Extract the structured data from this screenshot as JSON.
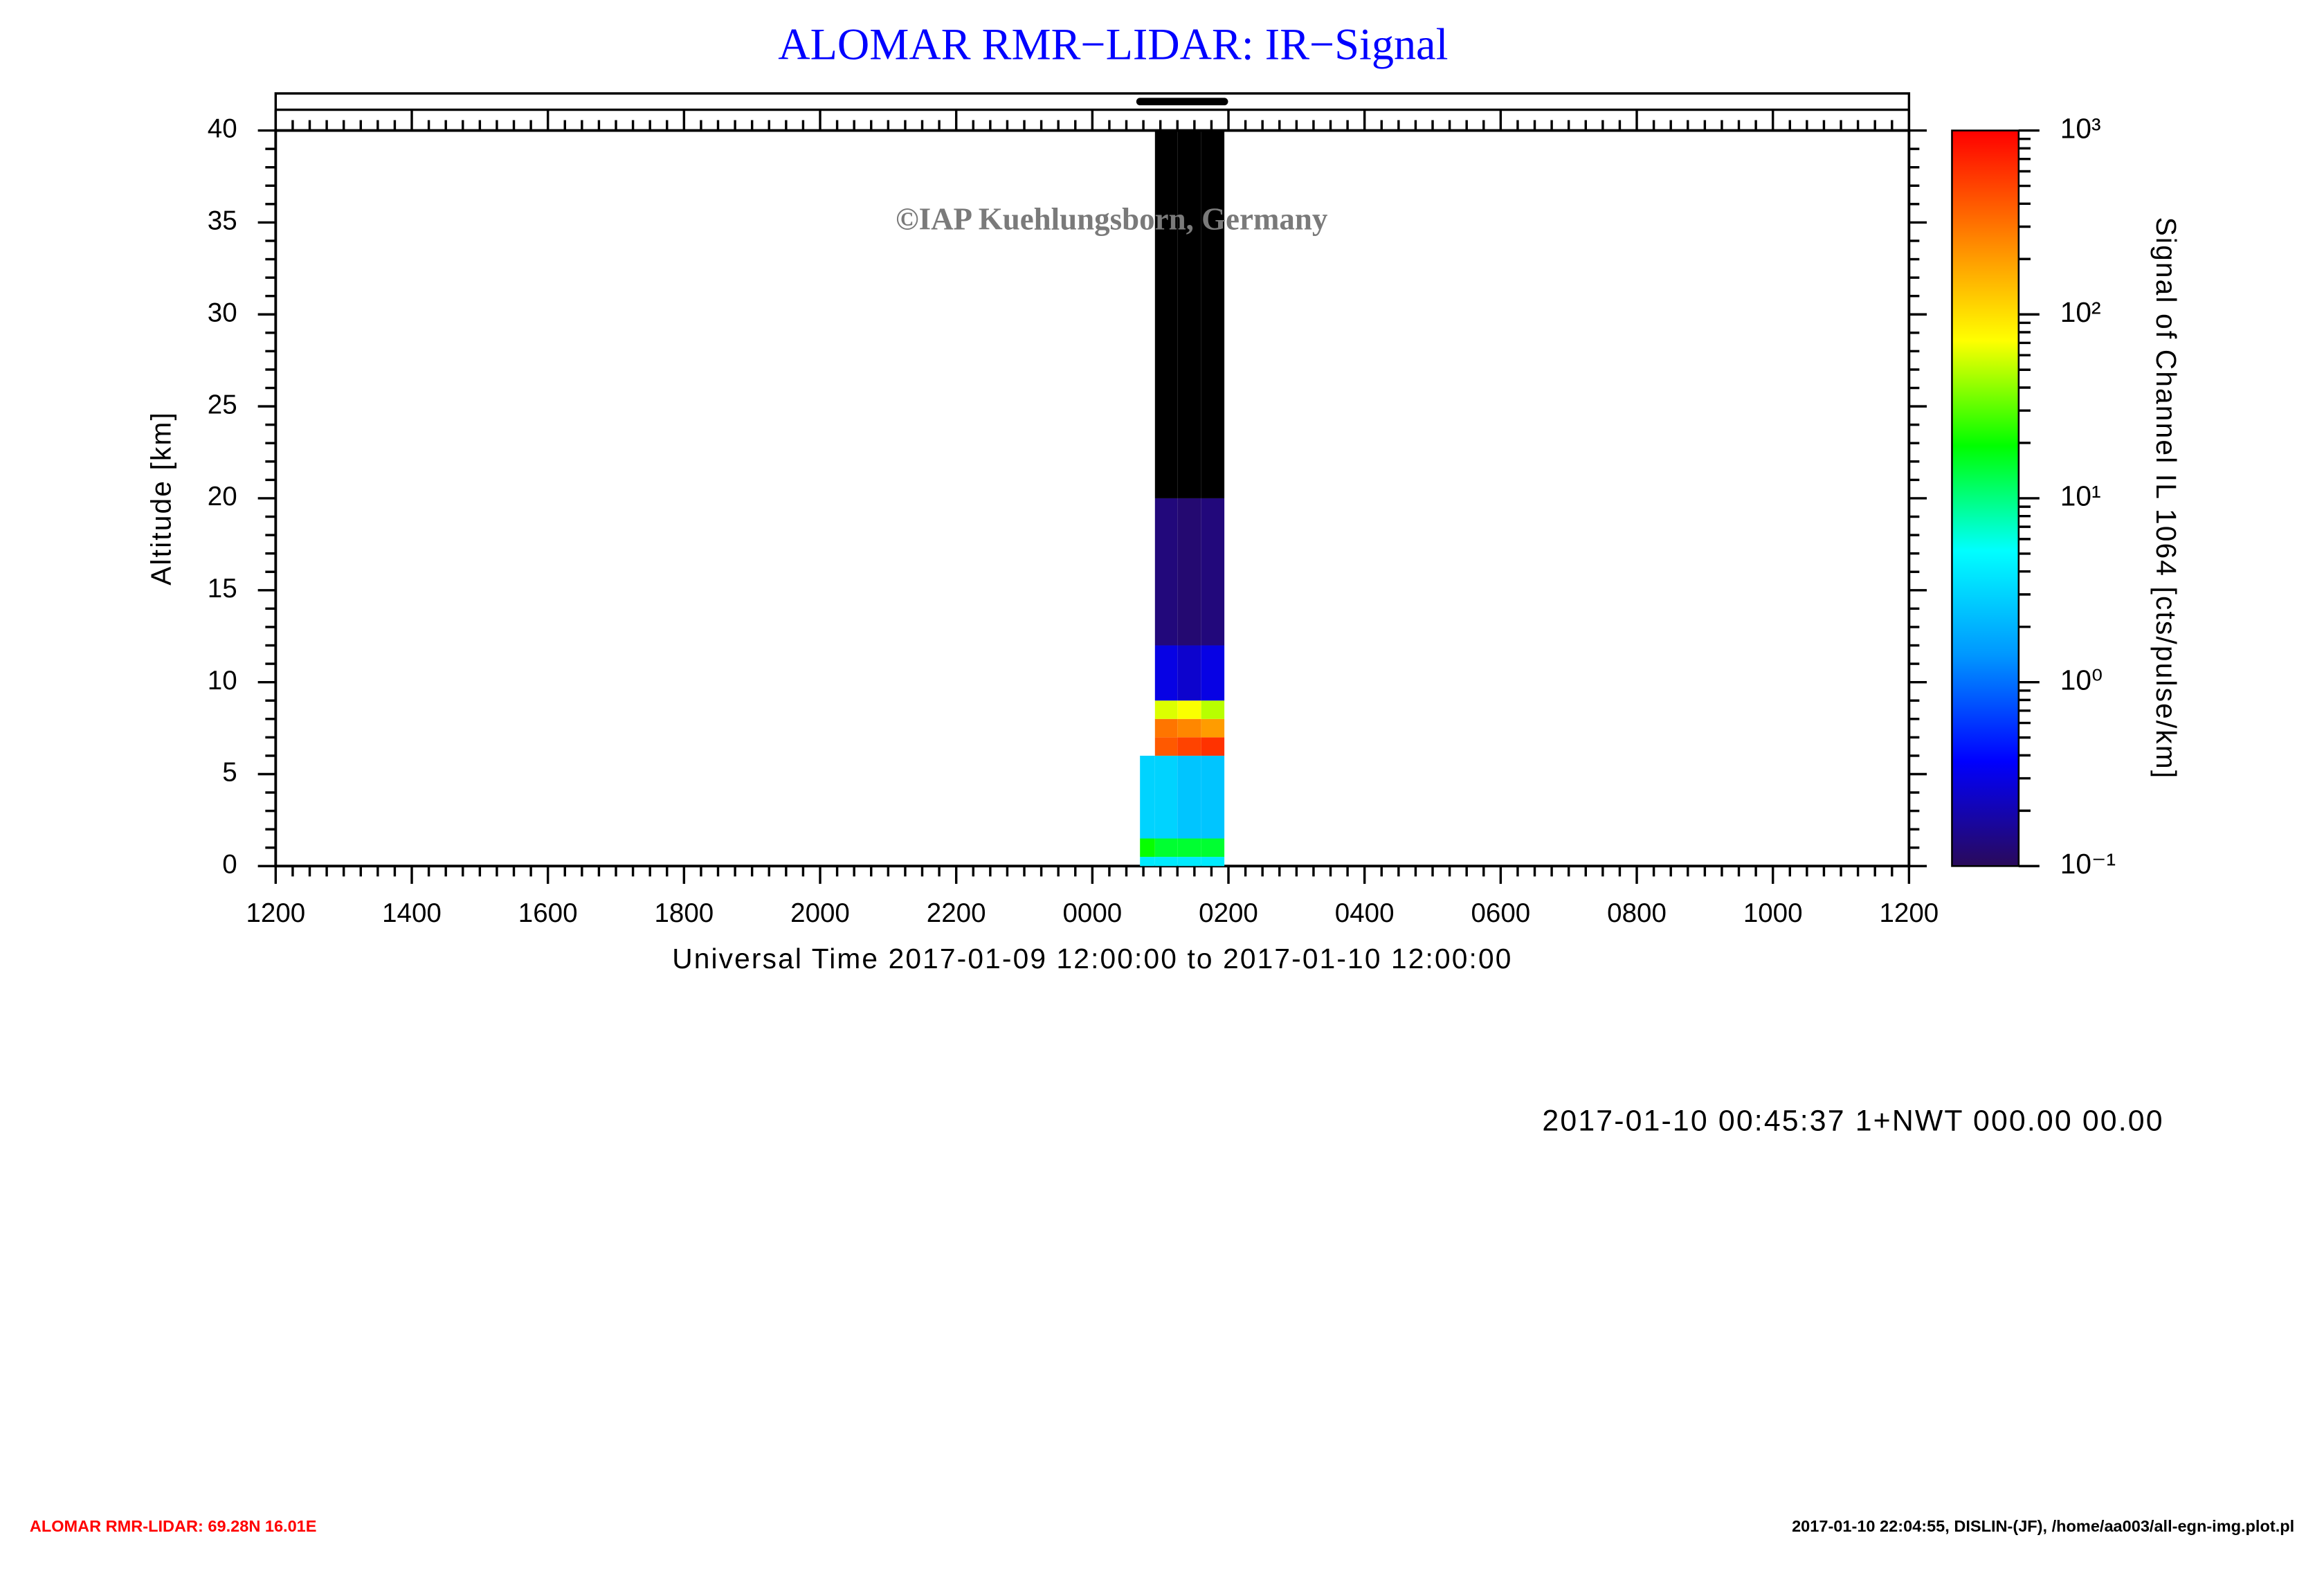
{
  "chart_data": {
    "type": "heatmap",
    "title": "ALOMAR RMR−LIDAR: IR−Signal",
    "watermark": "©IAP Kuehlungsborn, Germany",
    "x_label": "Universal Time 2017-01-09 12:00:00 to 2017-01-10 12:00:00",
    "y_label": "Altitude [km]",
    "colorbar_label": "Signal of Channel IL 1064 [cts/pulse/km]",
    "xlim": [
      0,
      24
    ],
    "xticks": [
      {
        "value": 0,
        "label": "1200"
      },
      {
        "value": 2,
        "label": "1400"
      },
      {
        "value": 4,
        "label": "1600"
      },
      {
        "value": 6,
        "label": "1800"
      },
      {
        "value": 8,
        "label": "2000"
      },
      {
        "value": 10,
        "label": "2200"
      },
      {
        "value": 12,
        "label": "0000"
      },
      {
        "value": 14,
        "label": "0200"
      },
      {
        "value": 16,
        "label": "0400"
      },
      {
        "value": 18,
        "label": "0600"
      },
      {
        "value": 20,
        "label": "0800"
      },
      {
        "value": 22,
        "label": "1000"
      },
      {
        "value": 24,
        "label": "1200"
      }
    ],
    "ylim": [
      0,
      40
    ],
    "yticks": [
      0,
      5,
      10,
      15,
      20,
      25,
      30,
      35,
      40
    ],
    "x_edges": [
      12.7,
      12.92,
      13.25,
      13.6,
      13.94
    ],
    "y_edges": [
      0,
      0.5,
      1.5,
      6,
      7,
      8,
      9,
      12,
      20,
      40
    ],
    "z": [
      [
        4,
        4,
        4,
        4
      ],
      [
        20,
        15,
        15,
        15
      ],
      [
        3,
        3,
        2.5,
        2.5
      ],
      [
        null,
        400,
        500,
        600
      ],
      [
        null,
        300,
        250,
        200
      ],
      [
        null,
        60,
        70,
        50
      ],
      [
        null,
        0.3,
        0.25,
        0.3
      ],
      [
        null,
        0.13,
        0.12,
        0.13
      ],
      [
        null,
        0.05,
        0.05,
        0.05
      ]
    ],
    "color_scale": "log",
    "colorlim": [
      0.1,
      1000
    ],
    "colorticks": [
      {
        "value": 0.1,
        "label": "10⁻¹"
      },
      {
        "value": 1,
        "label": "10⁰"
      },
      {
        "value": 10,
        "label": "10¹"
      },
      {
        "value": 100,
        "label": "10²"
      },
      {
        "value": 1000,
        "label": "10³"
      }
    ],
    "colormap": [
      "#2a0a5a",
      "#0000ff",
      "#0096ff",
      "#00ffff",
      "#00ff00",
      "#ffff00",
      "#ff8000",
      "#ff0000"
    ],
    "under_color": "#000000"
  },
  "status": "2017-01-10 00:45:37 1+NWT 000.00 00.00",
  "footer": {
    "left": "ALOMAR RMR-LIDAR: 69.28N 16.01E",
    "right": "2017-01-10 22:04:55, DISLIN-(JF), /home/aa003/all-egn-img.plot.pl"
  }
}
